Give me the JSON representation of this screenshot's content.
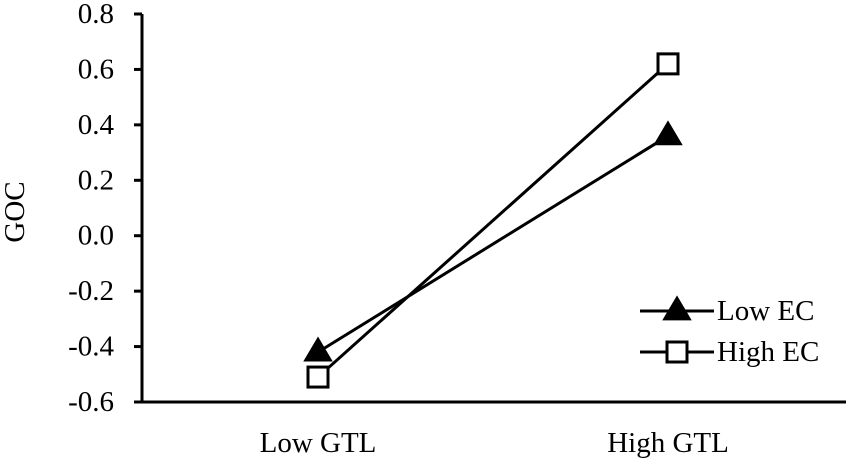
{
  "chart_data": {
    "type": "line",
    "title": "",
    "xlabel": "",
    "ylabel": "GOC",
    "categories": [
      "Low GTL",
      "High GTL"
    ],
    "ylim": [
      -0.6,
      0.8
    ],
    "yticks": [
      "-0.6",
      "-0.4",
      "-0.2",
      "0.0",
      "0.2",
      "0.4",
      "0.6",
      "0.8"
    ],
    "grid": false,
    "legend_position": "bottom-right",
    "series": [
      {
        "name": "Low EC",
        "marker": "filled-triangle",
        "values": [
          -0.42,
          0.36
        ]
      },
      {
        "name": "High EC",
        "marker": "open-square",
        "values": [
          -0.51,
          0.62
        ]
      }
    ],
    "colors": {
      "line": "#000000",
      "marker_fill_open": "#ffffff"
    }
  }
}
